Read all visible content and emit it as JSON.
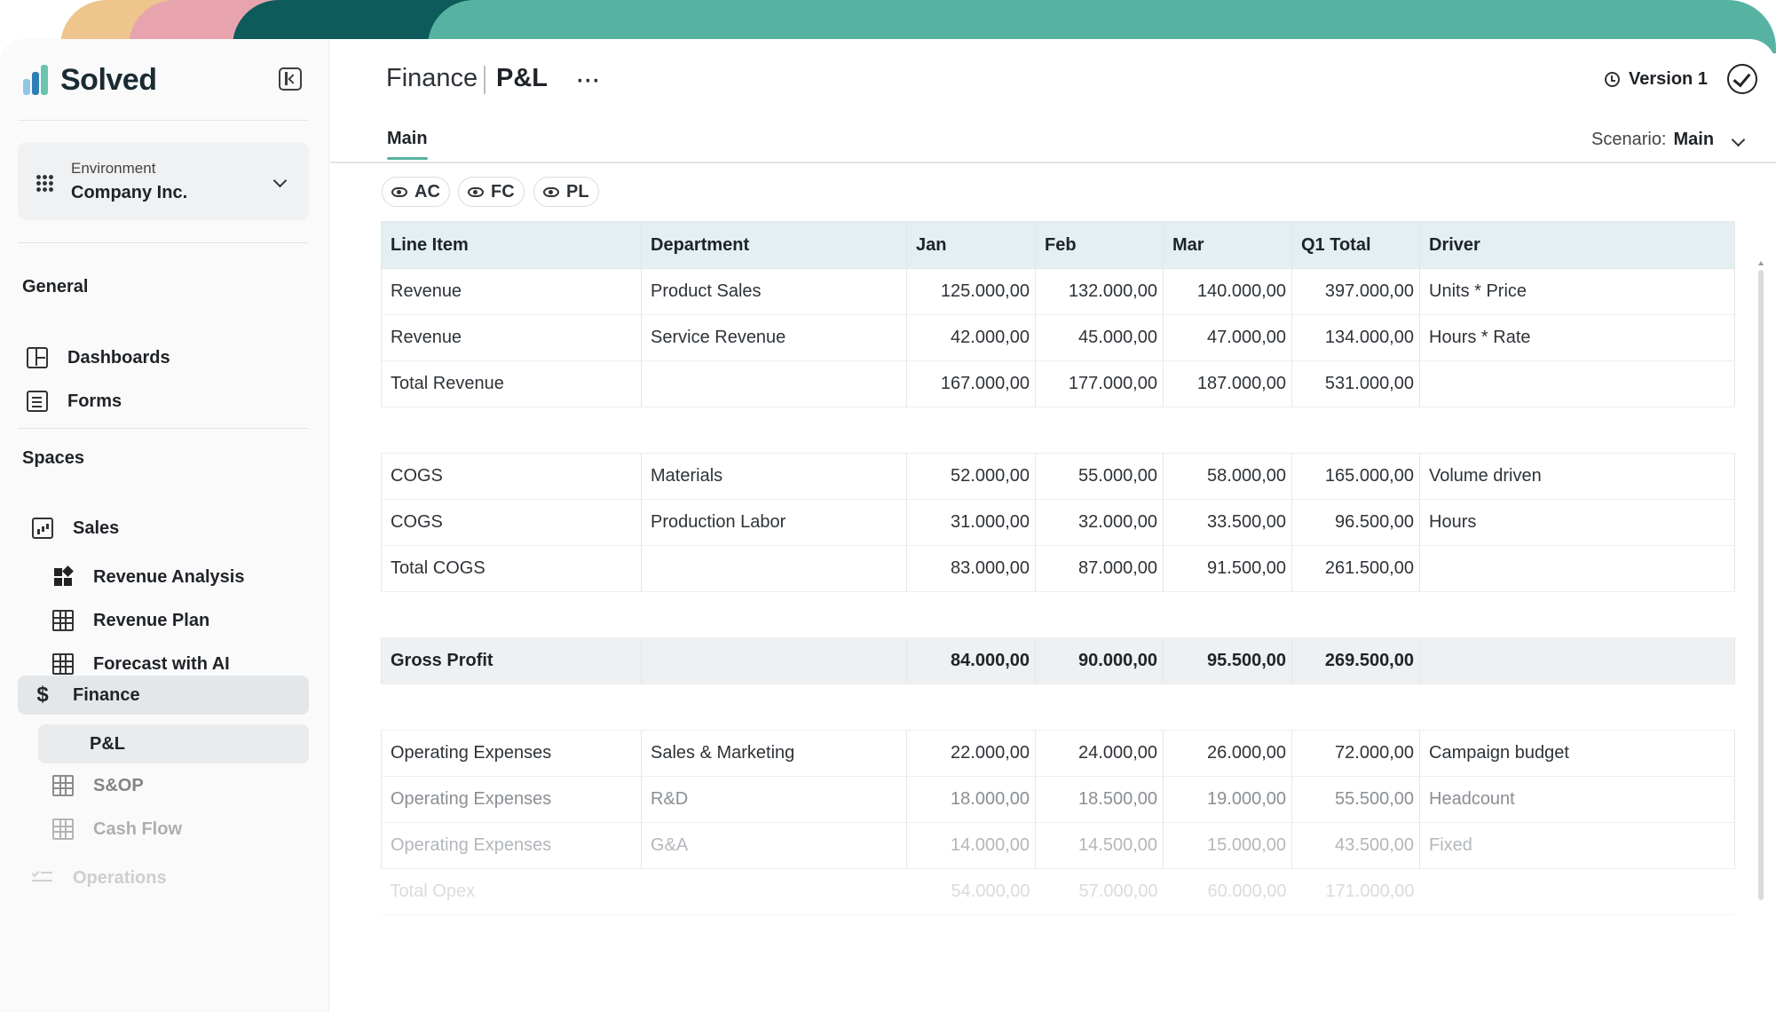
{
  "brand": {
    "name": "Solved"
  },
  "environment": {
    "label": "Environment",
    "value": "Company Inc."
  },
  "nav": {
    "general_label": "General",
    "general": [
      {
        "label": "Dashboards",
        "icon": "dashboard-icon"
      },
      {
        "label": "Forms",
        "icon": "form-icon"
      }
    ],
    "spaces_label": "Spaces",
    "sales": {
      "label": "Sales",
      "icon": "chart-icon"
    },
    "sales_children": [
      {
        "label": "Revenue Analysis",
        "icon": "widgets-icon"
      },
      {
        "label": "Revenue Plan",
        "icon": "table-icon"
      },
      {
        "label": "Forecast with AI",
        "icon": "table-icon"
      }
    ],
    "finance": {
      "label": "Finance",
      "icon": "dollar-icon"
    },
    "finance_children": [
      {
        "label": "P&L"
      },
      {
        "label": "S&OP",
        "icon": "table-icon"
      },
      {
        "label": "Cash Flow",
        "icon": "table-icon"
      }
    ],
    "operations": {
      "label": "Operations",
      "icon": "checklist-icon"
    }
  },
  "header": {
    "parent": "Finance",
    "current": "P&L",
    "more": "···",
    "version": "Version 1"
  },
  "tabs": {
    "main": "Main"
  },
  "scenario": {
    "label": "Scenario:",
    "value": "Main"
  },
  "chips": [
    "AC",
    "FC",
    "PL"
  ],
  "table": {
    "columns": [
      "Line Item",
      "Department",
      "Jan",
      "Feb",
      "Mar",
      "Q1 Total",
      "Driver"
    ],
    "revenue": [
      [
        "Revenue",
        "Product Sales",
        "125.000,00",
        "132.000,00",
        "140.000,00",
        "397.000,00",
        "Units * Price"
      ],
      [
        "Revenue",
        "Service Revenue",
        "42.000,00",
        "45.000,00",
        "47.000,00",
        "134.000,00",
        "Hours * Rate"
      ],
      [
        "Total Revenue",
        "",
        "167.000,00",
        "177.000,00",
        "187.000,00",
        "531.000,00",
        ""
      ]
    ],
    "cogs": [
      [
        "COGS",
        "Materials",
        "52.000,00",
        "55.000,00",
        "58.000,00",
        "165.000,00",
        "Volume driven"
      ],
      [
        "COGS",
        "Production Labor",
        "31.000,00",
        "32.000,00",
        "33.500,00",
        "96.500,00",
        "Hours"
      ],
      [
        "Total COGS",
        "",
        "83.000,00",
        "87.000,00",
        "91.500,00",
        "261.500,00",
        ""
      ]
    ],
    "gross": [
      "Gross Profit",
      "",
      "84.000,00",
      "90.000,00",
      "95.500,00",
      "269.500,00",
      ""
    ],
    "opex": [
      [
        "Operating Expenses",
        "Sales & Marketing",
        "22.000,00",
        "24.000,00",
        "26.000,00",
        "72.000,00",
        "Campaign budget"
      ],
      [
        "Operating Expenses",
        "R&D",
        "18.000,00",
        "18.500,00",
        "19.000,00",
        "55.500,00",
        "Headcount"
      ],
      [
        "Operating Expenses",
        "G&A",
        "14.000,00",
        "14.500,00",
        "15.000,00",
        "43.500,00",
        "Fixed"
      ],
      [
        "Total Opex",
        "",
        "54.000,00",
        "57.000,00",
        "60.000,00",
        "171.000,00",
        ""
      ]
    ]
  },
  "colors": {
    "accent": "#56b3a2",
    "header_bg": "#e3eff1",
    "dark_teal": "#0e5b5c"
  }
}
